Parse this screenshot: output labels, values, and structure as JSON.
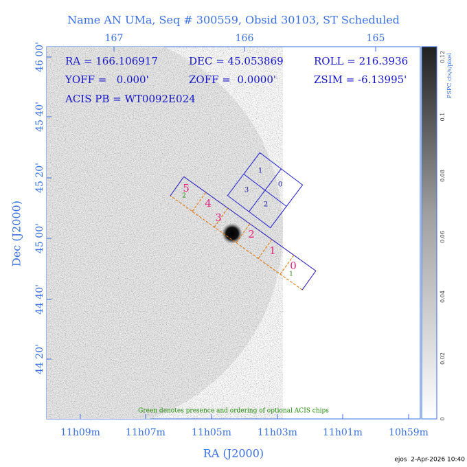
{
  "title": "Name AN UMa, Seq # 300559, Obsid 30103, ST Scheduled",
  "axes": {
    "x_label": "RA (J2000)",
    "y_label": "Dec (J2000)",
    "x_ticks": [
      "11h09m",
      "11h07m",
      "11h05m",
      "11h03m",
      "11h01m",
      "10h59m"
    ],
    "top_ticks": [
      "167",
      "166",
      "165"
    ],
    "y_ticks": [
      "46 00'",
      "45 40'",
      "45 20'",
      "45 00'",
      "44 40'",
      "44 20'"
    ]
  },
  "colorbar": {
    "label": "PSPC cts/s/pixel",
    "ticks": [
      "0",
      "0.02",
      "0.04",
      "0.06",
      "0.08",
      "0.1",
      "0.12"
    ]
  },
  "info": {
    "ra": "RA = 166.106917",
    "dec": "DEC = 45.053869",
    "roll": "ROLL = 216.3936",
    "yoff": "YOFF =   0.000'",
    "zoff": "ZOFF =  0.0000'",
    "zsim": "ZSIM = -6.13995'",
    "acis": "ACIS PB = WT0092E024"
  },
  "chips": {
    "acis_s": [
      "0",
      "1",
      "2",
      "3",
      "4",
      "5"
    ],
    "optional": [
      "1",
      "2"
    ],
    "acis_i": [
      "0",
      "1",
      "2",
      "3"
    ]
  },
  "note": "Green denotes presence and ordering of optional ACIS chips",
  "footer": "ejos  2-Apr-2026 10:40"
}
